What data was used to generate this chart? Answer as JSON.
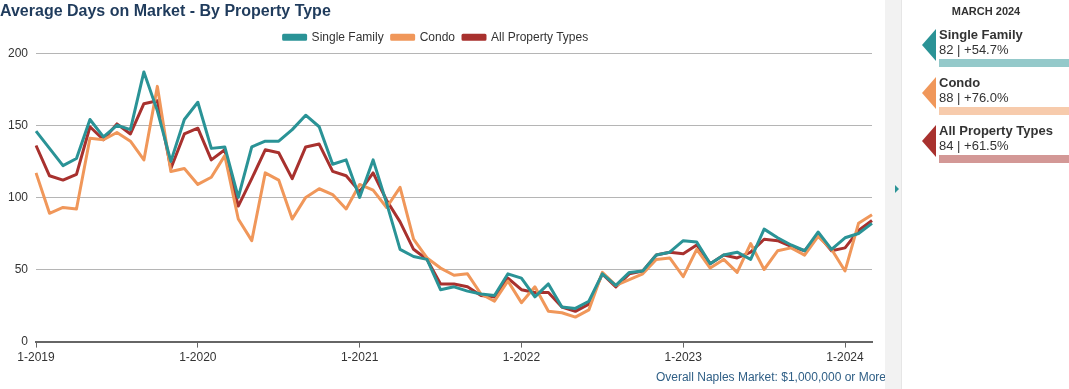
{
  "chart_data": {
    "type": "line",
    "title": "Average Days on Market - By Property Type",
    "categories": [
      "1-2019",
      null,
      null,
      null,
      null,
      null,
      null,
      null,
      null,
      null,
      null,
      null,
      "1-2020",
      null,
      null,
      null,
      null,
      null,
      null,
      null,
      null,
      null,
      null,
      null,
      "1-2021",
      null,
      null,
      null,
      null,
      null,
      null,
      null,
      null,
      null,
      null,
      null,
      "1-2022",
      null,
      null,
      null,
      null,
      null,
      null,
      null,
      null,
      null,
      null,
      null,
      "1-2023",
      null,
      null,
      null,
      null,
      null,
      null,
      null,
      null,
      null,
      null,
      null,
      "1-2024",
      null,
      null
    ],
    "series": [
      {
        "name": "Single Family",
        "color": "#2a9396",
        "values": [
          146,
          134,
          122,
          127,
          154,
          142,
          150,
          147,
          187,
          160,
          125,
          154,
          166,
          134,
          135,
          100,
          135,
          139,
          139,
          147,
          157,
          149,
          123,
          126,
          100,
          126,
          96,
          64,
          59,
          57,
          36,
          38,
          35,
          33,
          32,
          47,
          44,
          31,
          40,
          24,
          23,
          28,
          47,
          39,
          48,
          49,
          60,
          62,
          70,
          69,
          54,
          60,
          62,
          57,
          78,
          72,
          67,
          63,
          76,
          64,
          72,
          75,
          82
        ]
      },
      {
        "name": "Condo",
        "color": "#f0975a",
        "values": [
          117,
          89,
          93,
          92,
          141,
          140,
          145,
          139,
          126,
          177,
          118,
          120,
          109,
          114,
          129,
          85,
          70,
          117,
          112,
          85,
          100,
          106,
          102,
          92,
          109,
          105,
          93,
          107,
          71,
          58,
          51,
          46,
          47,
          33,
          28,
          42,
          27,
          38,
          21,
          20,
          17,
          22,
          48,
          39,
          43,
          47,
          57,
          58,
          45,
          64,
          51,
          57,
          48,
          68,
          50,
          63,
          65,
          60,
          73,
          64,
          49,
          82,
          88
        ]
      },
      {
        "name": "All Property Types",
        "color": "#a8312e",
        "values": [
          136,
          115,
          112,
          116,
          149,
          140,
          151,
          144,
          165,
          167,
          120,
          144,
          148,
          126,
          133,
          94,
          113,
          133,
          131,
          113,
          135,
          137,
          118,
          115,
          104,
          117,
          98,
          83,
          64,
          57,
          40,
          40,
          38,
          32,
          31,
          44,
          36,
          34,
          34,
          24,
          21,
          26,
          47,
          38,
          47,
          49,
          60,
          62,
          61,
          67,
          54,
          60,
          58,
          62,
          71,
          70,
          66,
          63,
          74,
          63,
          65,
          77,
          84
        ]
      }
    ],
    "ylim": [
      0,
      200
    ],
    "yticks": [
      0,
      50,
      100,
      150,
      200
    ],
    "grid": "y",
    "legend": "top",
    "marker": "none",
    "line_style": "solid",
    "annotations": [
      "Overall Naples Market: $1,000,000 or More",
      "MARCH 2024",
      "82 | +54.7%",
      "88 | +76.0%",
      "84 | +61.5%"
    ]
  }
}
